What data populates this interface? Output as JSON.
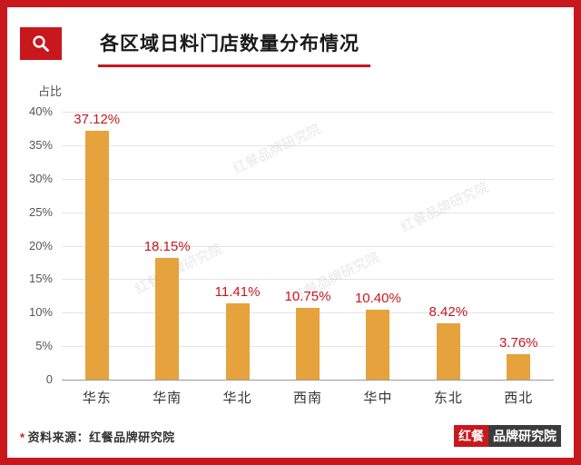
{
  "accent_color": "#C8171D",
  "header": {
    "title": "各区域日料门店数量分布情况"
  },
  "watermark": {
    "text": "红餐品牌研究院"
  },
  "chart_data": {
    "type": "bar",
    "title": "各区域日料门店数量分布情况",
    "categories": [
      "华东",
      "华南",
      "华北",
      "西南",
      "华中",
      "东北",
      "西北"
    ],
    "values": [
      37.12,
      18.15,
      11.41,
      10.75,
      10.4,
      8.42,
      3.76
    ],
    "value_labels": [
      "37.12%",
      "18.15%",
      "11.41%",
      "10.75%",
      "10.40%",
      "8.42%",
      "3.76%"
    ],
    "ylabel": "占比",
    "ylim": [
      0,
      40
    ],
    "ytick_step": 5,
    "ytick_labels": [
      "40%",
      "35%",
      "30%",
      "25%",
      "20%",
      "15%",
      "10%",
      "5%",
      "0"
    ],
    "grid": true,
    "legend": "none",
    "bar_color": "#E6A23C",
    "label_color": "#C8171D"
  },
  "footer": {
    "source_star": "*",
    "source_text": "资料来源：红餐品牌研究院",
    "logo_left": "红餐",
    "logo_right": "品牌研究院"
  }
}
